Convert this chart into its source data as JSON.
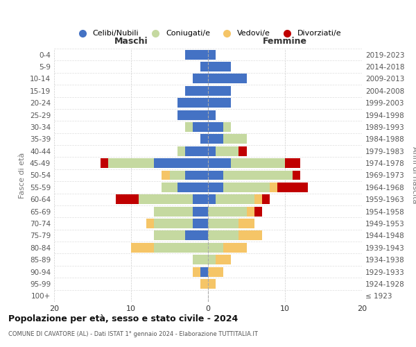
{
  "age_groups": [
    "100+",
    "95-99",
    "90-94",
    "85-89",
    "80-84",
    "75-79",
    "70-74",
    "65-69",
    "60-64",
    "55-59",
    "50-54",
    "45-49",
    "40-44",
    "35-39",
    "30-34",
    "25-29",
    "20-24",
    "15-19",
    "10-14",
    "5-9",
    "0-4"
  ],
  "birth_years": [
    "≤ 1923",
    "1924-1928",
    "1929-1933",
    "1934-1938",
    "1939-1943",
    "1944-1948",
    "1949-1953",
    "1954-1958",
    "1959-1963",
    "1964-1968",
    "1969-1973",
    "1974-1978",
    "1979-1983",
    "1984-1988",
    "1989-1993",
    "1994-1998",
    "1999-2003",
    "2004-2008",
    "2009-2013",
    "2014-2018",
    "2019-2023"
  ],
  "colors": {
    "celibe": "#4472C4",
    "coniugato": "#c5d9a0",
    "vedovo": "#f5c567",
    "divorziato": "#c00000"
  },
  "maschi": {
    "celibe": [
      0,
      0,
      1,
      0,
      0,
      3,
      2,
      2,
      2,
      4,
      3,
      7,
      3,
      1,
      2,
      4,
      4,
      3,
      2,
      1,
      3
    ],
    "coniugato": [
      0,
      0,
      0,
      2,
      7,
      4,
      5,
      5,
      7,
      2,
      2,
      6,
      1,
      0,
      1,
      0,
      0,
      0,
      0,
      0,
      0
    ],
    "vedovo": [
      0,
      1,
      1,
      0,
      3,
      0,
      1,
      0,
      0,
      0,
      1,
      0,
      0,
      0,
      0,
      0,
      0,
      0,
      0,
      0,
      0
    ],
    "divorziato": [
      0,
      0,
      0,
      0,
      0,
      0,
      0,
      0,
      3,
      0,
      0,
      1,
      0,
      0,
      0,
      0,
      0,
      0,
      0,
      0,
      0
    ]
  },
  "femmine": {
    "nubile": [
      0,
      0,
      0,
      0,
      0,
      0,
      0,
      0,
      1,
      2,
      2,
      3,
      1,
      2,
      2,
      1,
      3,
      3,
      5,
      3,
      1
    ],
    "coniugata": [
      0,
      0,
      0,
      1,
      2,
      4,
      4,
      5,
      5,
      6,
      9,
      7,
      3,
      3,
      1,
      0,
      0,
      0,
      0,
      0,
      0
    ],
    "vedova": [
      0,
      1,
      2,
      2,
      3,
      3,
      2,
      1,
      1,
      1,
      0,
      0,
      0,
      0,
      0,
      0,
      0,
      0,
      0,
      0,
      0
    ],
    "divorziata": [
      0,
      0,
      0,
      0,
      0,
      0,
      0,
      1,
      1,
      4,
      1,
      2,
      1,
      0,
      0,
      0,
      0,
      0,
      0,
      0,
      0
    ]
  },
  "title": "Popolazione per età, sesso e stato civile - 2024",
  "subtitle": "COMUNE DI CAVATORE (AL) - Dati ISTAT 1° gennaio 2024 - Elaborazione TUTTITALIA.IT",
  "xlabel_left": "Maschi",
  "xlabel_right": "Femmine",
  "ylabel_left": "Fasce di età",
  "ylabel_right": "Anni di nascita",
  "xlim": 20,
  "legend_labels": [
    "Celibi/Nubili",
    "Coniugati/e",
    "Vedovi/e",
    "Divorziati/e"
  ],
  "bg_color": "#ffffff",
  "xticks": [
    -20,
    -10,
    0,
    10,
    20
  ]
}
